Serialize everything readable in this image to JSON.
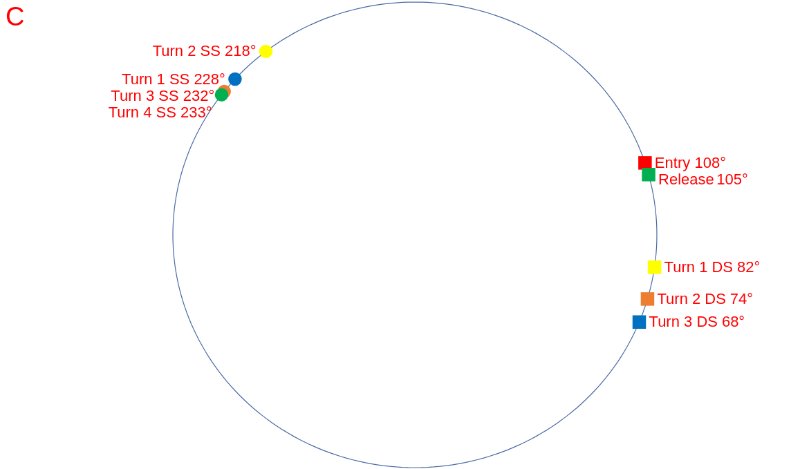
{
  "chart_data": {
    "type": "other",
    "title": "C",
    "categories": [
      "Turn 2 SS",
      "Turn 1 SS",
      "Turn 3 SS",
      "Turn 4 SS",
      "Entry",
      "Release",
      "Turn 1 DS",
      "Turn 2 DS",
      "Turn 3 DS"
    ],
    "series": [
      {
        "marker": "circle",
        "values": [
          218,
          228,
          232,
          233,
          null,
          null,
          null,
          null,
          null
        ],
        "colors": [
          "#ffff00",
          "#0070c0",
          "#ed7d31",
          "#00b050",
          null,
          null,
          null,
          null,
          null
        ],
        "value_labels": [
          "218°",
          "228°",
          "232°",
          "233°",
          null,
          null,
          null,
          null,
          null
        ]
      },
      {
        "marker": "square",
        "values": [
          null,
          null,
          null,
          null,
          108,
          105,
          82,
          74,
          68
        ],
        "colors": [
          null,
          null,
          null,
          null,
          "#ff0000",
          "#00b050",
          "#ffff00",
          "#ed7d31",
          "#0070c0"
        ],
        "value_labels": [
          null,
          null,
          null,
          null,
          "108°",
          "105°",
          "82°",
          "74°",
          "68°"
        ]
      }
    ]
  }
}
